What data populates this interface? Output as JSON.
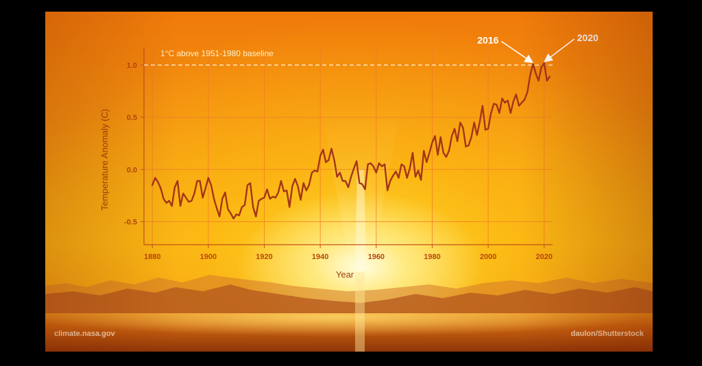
{
  "credits": {
    "source": "climate.nasa.gov",
    "photo": "daulon/Shutterstock"
  },
  "colors": {
    "line": "#a33519",
    "grid": "#f07a28",
    "axis": "#c2521a",
    "baseline": "#fff2c8",
    "annotation": "#ffffff"
  },
  "chart_data": {
    "type": "line",
    "xlabel": "Year",
    "ylabel": "Temperature Anomaly (C)",
    "xlim": [
      1877,
      2023
    ],
    "ylim": [
      -0.72,
      1.17
    ],
    "x_ticks": [
      1880,
      1900,
      1920,
      1940,
      1960,
      1980,
      2000,
      2020
    ],
    "y_ticks": [
      -0.5,
      0.0,
      0.5,
      1.0
    ],
    "y_tick_labels": [
      "-0.5",
      "0.0",
      "0.5",
      "1.0"
    ],
    "grid": true,
    "reference_line": {
      "y": 1.0,
      "label": "1°C above 1951-1980 baseline",
      "style": "dashed"
    },
    "annotations": [
      {
        "label": "2016",
        "x": 2016,
        "y": 1.01
      },
      {
        "label": "2020",
        "x": 2020,
        "y": 1.02
      }
    ],
    "series": [
      {
        "x": [
          1880,
          1881,
          1882,
          1883,
          1884,
          1885,
          1886,
          1887,
          1888,
          1889,
          1890,
          1891,
          1892,
          1893,
          1894,
          1895,
          1896,
          1897,
          1898,
          1899,
          1900,
          1901,
          1902,
          1903,
          1904,
          1905,
          1906,
          1907,
          1908,
          1909,
          1910,
          1911,
          1912,
          1913,
          1914,
          1915,
          1916,
          1917,
          1918,
          1919,
          1920,
          1921,
          1922,
          1923,
          1924,
          1925,
          1926,
          1927,
          1928,
          1929,
          1930,
          1931,
          1932,
          1933,
          1934,
          1935,
          1936,
          1937,
          1938,
          1939,
          1940,
          1941,
          1942,
          1943,
          1944,
          1945,
          1946,
          1947,
          1948,
          1949,
          1950,
          1951,
          1952,
          1953,
          1954,
          1955,
          1956,
          1957,
          1958,
          1959,
          1960,
          1961,
          1962,
          1963,
          1964,
          1965,
          1966,
          1967,
          1968,
          1969,
          1970,
          1971,
          1972,
          1973,
          1974,
          1975,
          1976,
          1977,
          1978,
          1979,
          1980,
          1981,
          1982,
          1983,
          1984,
          1985,
          1986,
          1987,
          1988,
          1989,
          1990,
          1991,
          1992,
          1993,
          1994,
          1995,
          1996,
          1997,
          1998,
          1999,
          2000,
          2001,
          2002,
          2003,
          2004,
          2005,
          2006,
          2007,
          2008,
          2009,
          2010,
          2011,
          2012,
          2013,
          2014,
          2015,
          2016,
          2017,
          2018,
          2019,
          2020,
          2021,
          2022
        ],
        "values": [
          -0.15,
          -0.08,
          -0.12,
          -0.18,
          -0.28,
          -0.32,
          -0.3,
          -0.35,
          -0.17,
          -0.11,
          -0.35,
          -0.23,
          -0.27,
          -0.31,
          -0.3,
          -0.23,
          -0.11,
          -0.11,
          -0.27,
          -0.18,
          -0.08,
          -0.15,
          -0.28,
          -0.37,
          -0.45,
          -0.28,
          -0.22,
          -0.38,
          -0.42,
          -0.47,
          -0.43,
          -0.44,
          -0.36,
          -0.34,
          -0.15,
          -0.13,
          -0.36,
          -0.45,
          -0.3,
          -0.28,
          -0.27,
          -0.19,
          -0.28,
          -0.26,
          -0.27,
          -0.22,
          -0.11,
          -0.21,
          -0.2,
          -0.36,
          -0.16,
          -0.09,
          -0.16,
          -0.29,
          -0.13,
          -0.2,
          -0.15,
          -0.03,
          -0.01,
          -0.02,
          0.13,
          0.19,
          0.07,
          0.09,
          0.2,
          0.09,
          -0.07,
          -0.03,
          -0.11,
          -0.11,
          -0.17,
          -0.07,
          0.01,
          0.08,
          -0.13,
          -0.14,
          -0.19,
          0.05,
          0.06,
          0.03,
          -0.03,
          0.06,
          0.03,
          0.05,
          -0.2,
          -0.11,
          -0.06,
          -0.02,
          -0.08,
          0.05,
          0.03,
          -0.08,
          0.01,
          0.16,
          -0.07,
          -0.01,
          -0.1,
          0.18,
          0.07,
          0.16,
          0.26,
          0.32,
          0.14,
          0.31,
          0.16,
          0.12,
          0.18,
          0.32,
          0.39,
          0.27,
          0.45,
          0.4,
          0.22,
          0.23,
          0.31,
          0.45,
          0.33,
          0.46,
          0.61,
          0.38,
          0.39,
          0.54,
          0.63,
          0.62,
          0.54,
          0.68,
          0.64,
          0.66,
          0.54,
          0.65,
          0.72,
          0.61,
          0.64,
          0.67,
          0.74,
          0.9,
          1.01,
          0.92,
          0.85,
          0.98,
          1.02,
          0.85,
          0.89
        ]
      }
    ]
  }
}
